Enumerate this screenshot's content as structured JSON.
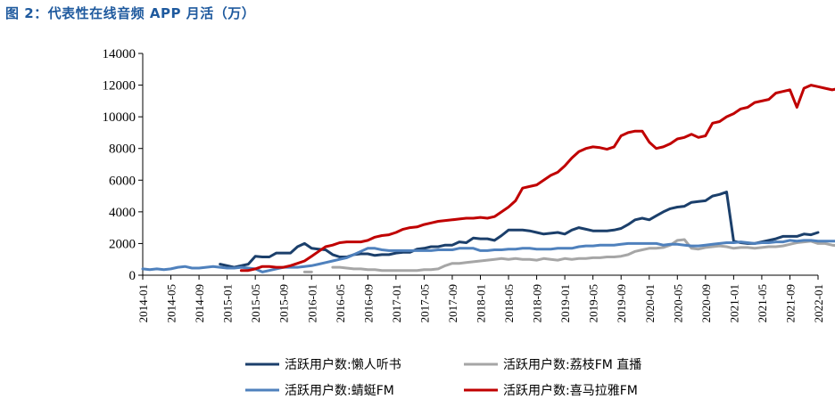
{
  "figure": {
    "title": "图 2：代表性在线音频 APP 月活（万）"
  },
  "chart_data": {
    "type": "line",
    "title": "图 2：代表性在线音频 APP 月活（万）",
    "xlabel": "",
    "ylabel": "",
    "ylim": [
      0,
      14000
    ],
    "y_ticks": [
      0,
      2000,
      4000,
      6000,
      8000,
      10000,
      12000,
      14000
    ],
    "x_ticks": [
      "2014-01",
      "2014-05",
      "2014-09",
      "2015-01",
      "2015-05",
      "2015-09",
      "2016-01",
      "2016-05",
      "2016-09",
      "2017-01",
      "2017-05",
      "2017-09",
      "2018-01",
      "2018-05",
      "2018-09",
      "2019-01",
      "2019-05",
      "2019-09",
      "2020-01",
      "2020-05",
      "2020-09",
      "2021-01",
      "2021-05",
      "2021-09",
      "2022-01"
    ],
    "x_range": [
      "2014-01",
      "2022-01"
    ],
    "grid": false,
    "legend_position": "bottom",
    "series": [
      {
        "name": "活跃用户数:懒人听书",
        "color": "#1b3f6b",
        "x_start": "2014-12",
        "values": [
          700,
          600,
          500,
          600,
          700,
          1200,
          1150,
          1150,
          1400,
          1400,
          1400,
          1800,
          2000,
          1700,
          1650,
          1600,
          1300,
          1150,
          1150,
          1300,
          1350,
          1350,
          1250,
          1300,
          1300,
          1400,
          1450,
          1450,
          1650,
          1700,
          1800,
          1800,
          1900,
          1900,
          2100,
          2050,
          2350,
          2300,
          2300,
          2200,
          2500,
          2850,
          2850,
          2850,
          2800,
          2700,
          2600,
          2650,
          2700,
          2600,
          2850,
          3000,
          2900,
          2800,
          2800,
          2800,
          2850,
          2950,
          3200,
          3500,
          3600,
          3500,
          3750,
          4000,
          4200,
          4300,
          4350,
          4600,
          4650,
          4700,
          5000,
          5100,
          5250,
          2150,
          2050,
          2000,
          2000,
          2100,
          2200,
          2300,
          2450,
          2450,
          2450,
          2600,
          2550,
          2700
        ]
      },
      {
        "name": "活跃用户数:荔枝FM 直播",
        "color": "#a6a6a6",
        "segments": [
          {
            "x_start": "2015-12",
            "values": [
              200,
              200
            ]
          },
          {
            "x_start": "2016-04",
            "values": [
              500,
              500,
              450,
              400,
              400,
              350,
              350,
              300,
              300,
              300,
              300,
              300,
              300,
              350,
              350,
              400,
              600,
              750,
              750,
              800,
              850,
              900,
              950,
              1000,
              1050,
              1000,
              1050,
              1000,
              1000,
              950,
              1050,
              1000,
              950,
              1050,
              1000,
              1050,
              1050,
              1100,
              1100,
              1150,
              1150,
              1200,
              1300,
              1500,
              1600,
              1700,
              1700,
              1750,
              1900,
              2200,
              2250,
              1700,
              1650,
              1750,
              1800,
              1850,
              1800,
              1700,
              1750,
              1750,
              1700,
              1750,
              1800,
              1800,
              1850,
              1950,
              2050,
              2100,
              2150,
              2000,
              2000,
              1900,
              1850,
              1800,
              1800,
              1850,
              1800,
              1750,
              1700,
              1650
            ]
          }
        ]
      },
      {
        "name": "活跃用户数:蜻蜓FM",
        "color": "#4f81bd",
        "x_start": "2014-01",
        "values": [
          400,
          350,
          400,
          350,
          400,
          500,
          550,
          450,
          450,
          500,
          550,
          500,
          450,
          450,
          500,
          450,
          400,
          200,
          300,
          400,
          500,
          500,
          500,
          550,
          600,
          700,
          800,
          900,
          1000,
          1100,
          1300,
          1500,
          1700,
          1700,
          1600,
          1550,
          1550,
          1550,
          1550,
          1550,
          1550,
          1550,
          1600,
          1600,
          1600,
          1700,
          1700,
          1700,
          1550,
          1550,
          1600,
          1600,
          1650,
          1650,
          1700,
          1700,
          1650,
          1650,
          1650,
          1700,
          1700,
          1700,
          1800,
          1850,
          1850,
          1900,
          1900,
          1900,
          1950,
          2000,
          2000,
          2000,
          2000,
          2000,
          1900,
          1950,
          1950,
          1900,
          1850,
          1850,
          1900,
          1950,
          2000,
          2050,
          2050,
          2100,
          2050,
          2000,
          2050,
          2050,
          2100,
          2100,
          2200,
          2150,
          2200,
          2200,
          2150,
          2150,
          2150,
          2150,
          2150,
          2150,
          2150,
          2150,
          2100,
          2050,
          2000,
          2000,
          1950,
          1950,
          1900,
          1800,
          1750,
          1750,
          1700,
          1750,
          1700,
          1700,
          1800,
          1700,
          1600
        ]
      },
      {
        "name": "活跃用户数:喜马拉雅FM",
        "color": "#c00000",
        "x_start": "2015-03",
        "values": [
          300,
          300,
          400,
          550,
          550,
          500,
          500,
          600,
          750,
          900,
          1200,
          1500,
          1800,
          1900,
          2050,
          2100,
          2100,
          2100,
          2200,
          2400,
          2500,
          2550,
          2700,
          2900,
          3000,
          3050,
          3200,
          3300,
          3400,
          3450,
          3500,
          3550,
          3600,
          3600,
          3650,
          3600,
          3700,
          4000,
          4300,
          4700,
          5500,
          5600,
          5700,
          6000,
          6300,
          6500,
          6900,
          7400,
          7800,
          8000,
          8100,
          8050,
          7950,
          8100,
          8800,
          9000,
          9100,
          9100,
          8400,
          8000,
          8100,
          8300,
          8600,
          8700,
          8900,
          8700,
          8800,
          9600,
          9700,
          10000,
          10200,
          10500,
          10600,
          10900,
          11000,
          11100,
          11500,
          11600,
          11700,
          10600,
          11800,
          12000,
          11900,
          11800,
          11700,
          11800,
          12000,
          12000,
          12100,
          12100,
          12400,
          12200
        ]
      }
    ]
  },
  "legend": {
    "items": [
      {
        "label": "活跃用户数:懒人听书",
        "color": "#1b3f6b"
      },
      {
        "label": "活跃用户数:荔枝FM 直播",
        "color": "#a6a6a6"
      },
      {
        "label": "活跃用户数:蜻蜓FM",
        "color": "#4f81bd"
      },
      {
        "label": "活跃用户数:喜马拉雅FM",
        "color": "#c00000"
      }
    ]
  }
}
